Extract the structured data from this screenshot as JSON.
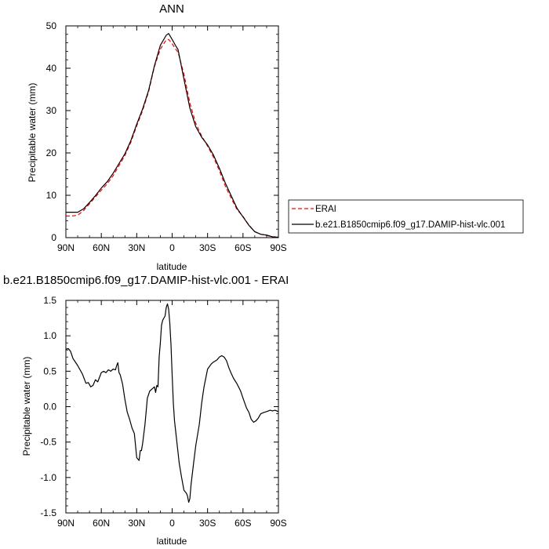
{
  "chart_data": [
    {
      "type": "line",
      "title": "ANN",
      "xlabel": "latitude",
      "ylabel": "Precipitable water (mm)",
      "xlim": [
        -90,
        90
      ],
      "ylim": [
        0,
        50
      ],
      "x_tick_labels": [
        "90N",
        "60N",
        "30N",
        "0",
        "30S",
        "60S",
        "90S"
      ],
      "x_tick_values": [
        -90,
        -60,
        -30,
        0,
        30,
        60,
        90
      ],
      "y_tick_values": [
        0,
        10,
        20,
        30,
        40,
        50
      ],
      "y_tick_labels": [
        "0",
        "10",
        "20",
        "30",
        "40",
        "50"
      ],
      "legend_placement": "right",
      "series": [
        {
          "name": "ERAI",
          "color": "#ff0000",
          "dash": "dashed",
          "x": [
            -90,
            -85,
            -80,
            -75,
            -70,
            -65,
            -60,
            -55,
            -50,
            -45,
            -40,
            -35,
            -30,
            -25,
            -20,
            -15,
            -10,
            -5,
            -3,
            0,
            3,
            5,
            10,
            15,
            20,
            25,
            30,
            35,
            40,
            45,
            50,
            55,
            60,
            65,
            70,
            75,
            80,
            85,
            90
          ],
          "values": [
            5.1,
            5.1,
            5.3,
            6.4,
            8.0,
            9.6,
            11.2,
            12.7,
            14.6,
            17.0,
            19.4,
            22.5,
            26.4,
            30.0,
            34.4,
            40.4,
            44.5,
            46.7,
            46.8,
            45.8,
            44.5,
            43.8,
            38.6,
            31.8,
            27.0,
            24.0,
            21.6,
            19.0,
            15.8,
            12.2,
            9.3,
            6.6,
            5.0,
            3.0,
            1.4,
            0.8,
            0.5,
            0.2,
            0.2
          ]
        },
        {
          "name": "b.e21.B1850cmip6.f09_g17.DAMIP-hist-vlc.001",
          "color": "#000000",
          "dash": "solid",
          "x": [
            -90,
            -85,
            -80,
            -75,
            -70,
            -65,
            -60,
            -55,
            -50,
            -45,
            -40,
            -35,
            -30,
            -25,
            -20,
            -15,
            -10,
            -5,
            -3,
            0,
            3,
            5,
            10,
            15,
            20,
            25,
            30,
            35,
            40,
            45,
            50,
            55,
            60,
            65,
            70,
            75,
            80,
            85,
            90
          ],
          "values": [
            6.0,
            6.0,
            6.0,
            6.8,
            8.3,
            9.9,
            11.7,
            13.2,
            15.2,
            17.5,
            19.8,
            22.9,
            26.8,
            30.4,
            34.7,
            40.6,
            45.4,
            47.8,
            48.2,
            46.8,
            45.3,
            44.4,
            37.4,
            30.6,
            26.2,
            23.7,
            21.9,
            19.5,
            16.4,
            12.9,
            9.9,
            6.9,
            4.9,
            2.9,
            1.4,
            0.8,
            0.6,
            0.2,
            0.1
          ]
        }
      ]
    },
    {
      "type": "line",
      "title": "b.e21.B1850cmip6.f09_g17.DAMIP-hist-vlc.001 - ERAI",
      "xlabel": "latitude",
      "ylabel": "Precipitable water (mm)",
      "xlim": [
        -90,
        90
      ],
      "ylim": [
        -1.5,
        1.5
      ],
      "x_tick_labels": [
        "90N",
        "60N",
        "30N",
        "0",
        "30S",
        "60S",
        "90S"
      ],
      "x_tick_values": [
        -90,
        -60,
        -30,
        0,
        30,
        60,
        90
      ],
      "y_tick_values": [
        -1.5,
        -1.0,
        -0.5,
        0.0,
        0.5,
        1.0,
        1.5
      ],
      "y_tick_labels": [
        "-1.5",
        "-1.0",
        "-0.5",
        "0.0",
        "0.5",
        "1.0",
        "1.5"
      ],
      "series": [
        {
          "color": "#000000",
          "x": [
            -90,
            -88,
            -86,
            -84,
            -80,
            -76,
            -73,
            -71,
            -69,
            -67,
            -65,
            -63,
            -60,
            -58,
            -56,
            -54,
            -52,
            -50,
            -48,
            -47,
            -46,
            -45,
            -44,
            -42,
            -40,
            -38,
            -36,
            -34,
            -32,
            -30,
            -29,
            -28,
            -27,
            -26,
            -25,
            -23,
            -21,
            -19,
            -17,
            -15,
            -14,
            -13,
            -12,
            -11,
            -10,
            -9,
            -8,
            -6,
            -5,
            -4,
            -3,
            -2,
            -1,
            0,
            1,
            2,
            3,
            4,
            5,
            6,
            8,
            10,
            12,
            13,
            14,
            15,
            16,
            18,
            20,
            23,
            25,
            27,
            30,
            33,
            35,
            38,
            40,
            42,
            44,
            46,
            48,
            50,
            52,
            55,
            58,
            60,
            63,
            65,
            67,
            69,
            71,
            73,
            75,
            78,
            80,
            83,
            85,
            87,
            90
          ],
          "values": [
            0.81,
            0.82,
            0.78,
            0.68,
            0.58,
            0.46,
            0.33,
            0.34,
            0.28,
            0.3,
            0.38,
            0.35,
            0.48,
            0.5,
            0.48,
            0.52,
            0.5,
            0.53,
            0.52,
            0.58,
            0.62,
            0.48,
            0.45,
            0.32,
            0.1,
            -0.08,
            -0.18,
            -0.3,
            -0.38,
            -0.72,
            -0.74,
            -0.76,
            -0.62,
            -0.62,
            -0.52,
            -0.25,
            0.12,
            0.22,
            0.25,
            0.28,
            0.2,
            0.3,
            0.28,
            0.7,
            0.9,
            1.15,
            1.22,
            1.28,
            1.4,
            1.45,
            1.38,
            1.18,
            0.88,
            0.45,
            0.05,
            -0.2,
            -0.35,
            -0.5,
            -0.65,
            -0.8,
            -1.0,
            -1.18,
            -1.22,
            -1.26,
            -1.35,
            -1.3,
            -1.1,
            -0.82,
            -0.55,
            -0.25,
            0.05,
            0.28,
            0.53,
            0.6,
            0.63,
            0.66,
            0.7,
            0.72,
            0.7,
            0.65,
            0.55,
            0.47,
            0.4,
            0.32,
            0.22,
            0.12,
            -0.02,
            -0.08,
            -0.18,
            -0.22,
            -0.2,
            -0.16,
            -0.1,
            -0.08,
            -0.07,
            -0.05,
            -0.06,
            -0.05,
            -0.07
          ]
        }
      ]
    }
  ]
}
